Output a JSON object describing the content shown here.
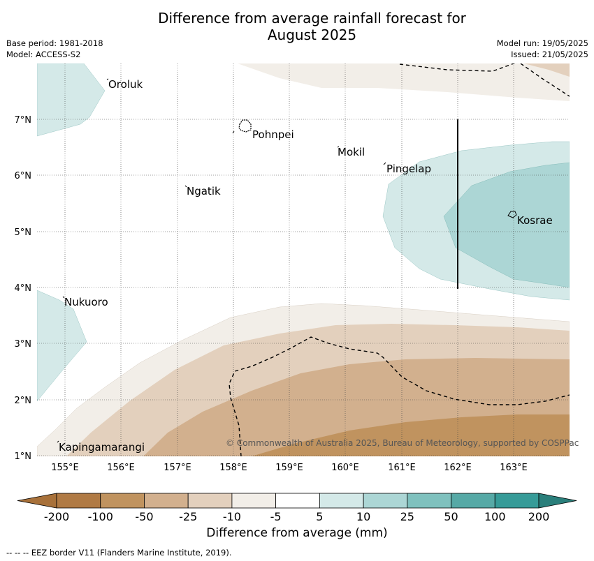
{
  "title_line1": "Difference from average rainfall forecast for",
  "title_line2": "August 2025",
  "meta": {
    "base_period": "Base period: 1981-2018",
    "model": "Model: ACCESS-S2",
    "model_run": "Model run: 19/05/2025",
    "issued": "Issued: 21/05/2025"
  },
  "map": {
    "longitude_labels": [
      "155°E",
      "156°E",
      "157°E",
      "158°E",
      "159°E",
      "160°E",
      "161°E",
      "162°E",
      "163°E"
    ],
    "latitude_labels": [
      "1°N",
      "2°N",
      "3°N",
      "4°N",
      "5°N",
      "6°N",
      "7°N"
    ],
    "places": [
      "Oroluk",
      "Pohnpei",
      "Mokil",
      "Pingelap",
      "Ngatik",
      "Kosrae",
      "Nukuoro",
      "Kapingamarangi"
    ],
    "copyright": "© Commonwealth of Australia 2025, Bureau of Meteorology, supported by COSPPac"
  },
  "colorbar": {
    "labels": [
      "-200",
      "-100",
      "-50",
      "-25",
      "-10",
      "-5",
      "5",
      "10",
      "25",
      "50",
      "100",
      "200"
    ],
    "colors": [
      "#a8713a",
      "#b07a44",
      "#c0935f",
      "#d2b08e",
      "#e3d0bd",
      "#f2eee8",
      "#ffffff",
      "#d4e9e8",
      "#acd6d5",
      "#7fc1be",
      "#56a9a6",
      "#369b98",
      "#2a7f7b"
    ],
    "title": "Difference from average (mm)"
  },
  "footnote": "--  --  -- EEZ border V11 (Flanders Marine Institute, 2019)."
}
